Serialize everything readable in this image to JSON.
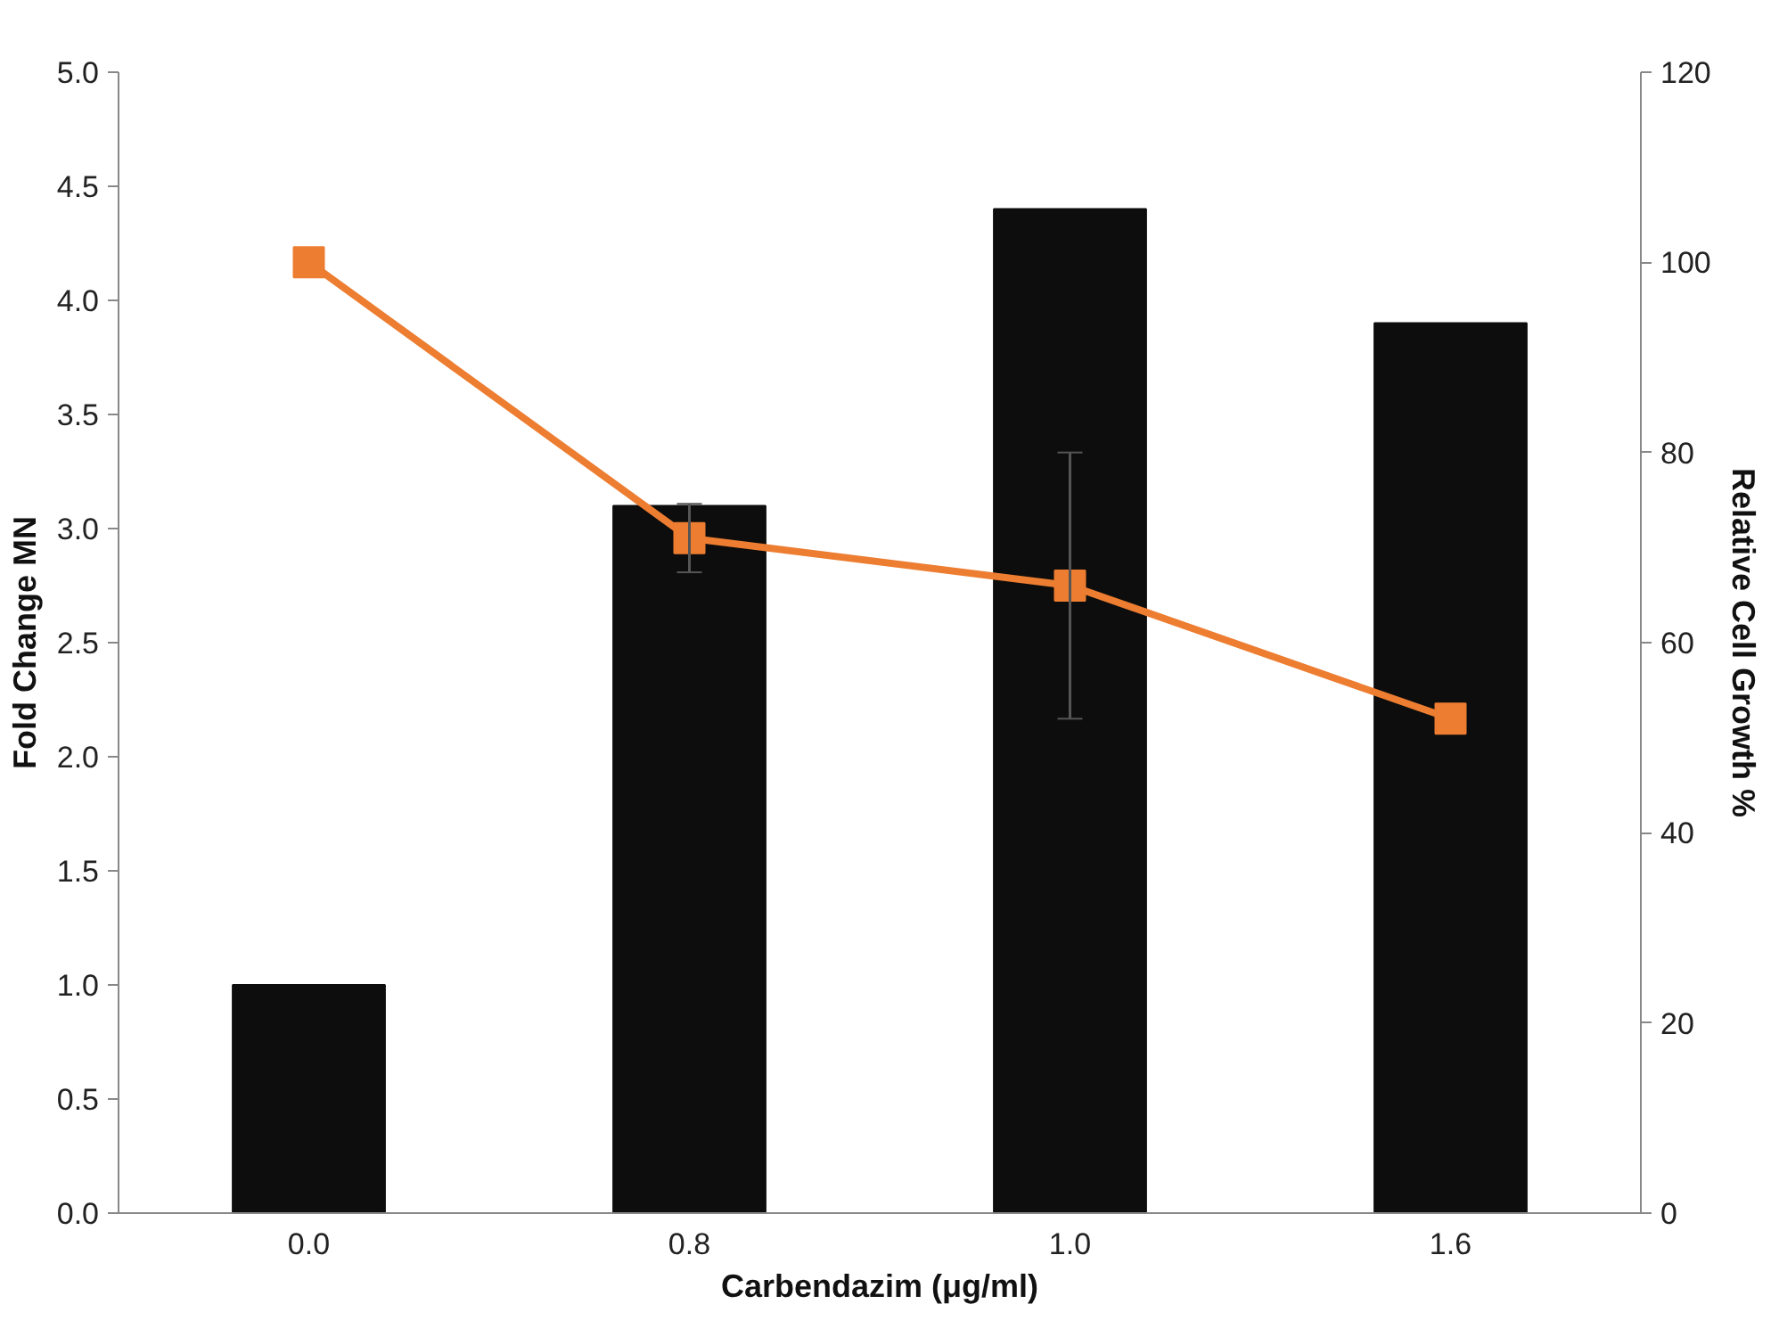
{
  "chart_data": {
    "type": "bar",
    "xlabel": "Carbendazim (μg/ml)",
    "ylabel": "Fold Change MN",
    "y2label": "Relative Cell Growth %",
    "categories": [
      "0.0",
      "0.8",
      "1.0",
      "1.6"
    ],
    "series": [
      {
        "color": "#0d0d0d",
        "values": [
          1.0,
          3.1,
          4.4,
          3.9
        ]
      },
      {
        "type": "line",
        "axis": "y2",
        "color": "#ed7d31",
        "marker": "square",
        "values": [
          100,
          71,
          66,
          52
        ],
        "errors": [
          null,
          3.6,
          14,
          null
        ]
      }
    ],
    "ylim": [
      0,
      5
    ],
    "yticks": [
      {
        "value": 0,
        "label": "0.0"
      },
      0.5,
      {
        "value": 1,
        "label": "1.0"
      },
      1.5,
      {
        "value": 2,
        "label": "2.0"
      },
      2.5,
      {
        "value": 3,
        "label": "3.0"
      },
      3.5,
      {
        "value": 4,
        "label": "4.0"
      },
      4.5,
      {
        "value": 5,
        "label": "5.0"
      }
    ],
    "y2lim": [
      0,
      120
    ],
    "y2ticks": [
      0,
      20,
      40,
      60,
      80,
      100,
      120
    ],
    "grid": false
  }
}
